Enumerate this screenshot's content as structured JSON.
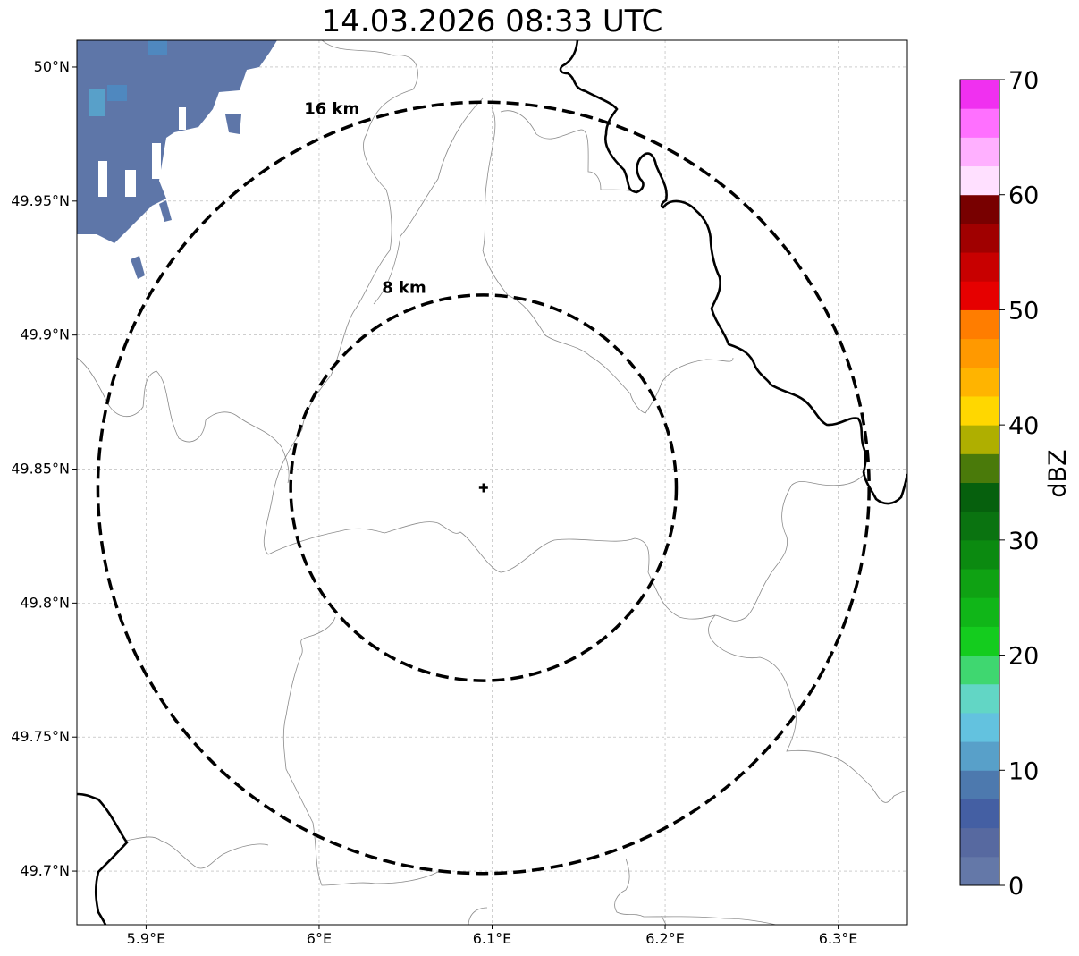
{
  "title": "14.03.2026 08:33 UTC",
  "map": {
    "lon_range": [
      5.86,
      6.34
    ],
    "lat_range": [
      49.68,
      50.01
    ],
    "lon_ticks": [
      {
        "value": 5.9,
        "label": "5.9°E"
      },
      {
        "value": 6.0,
        "label": "6°E"
      },
      {
        "value": 6.1,
        "label": "6.1°E"
      },
      {
        "value": 6.2,
        "label": "6.2°E"
      },
      {
        "value": 6.3,
        "label": "6.3°E"
      }
    ],
    "lat_ticks": [
      {
        "value": 50.0,
        "label": "50°N"
      },
      {
        "value": 49.95,
        "label": "49.95°N"
      },
      {
        "value": 49.9,
        "label": "49.9°N"
      },
      {
        "value": 49.85,
        "label": "49.85°N"
      },
      {
        "value": 49.8,
        "label": "49.8°N"
      },
      {
        "value": 49.75,
        "label": "49.75°N"
      },
      {
        "value": 49.7,
        "label": "49.7°N"
      }
    ],
    "center": {
      "lon": 6.095,
      "lat": 49.843
    },
    "rings": [
      {
        "radius_km": 8,
        "label": "8 km"
      },
      {
        "radius_km": 16,
        "label": "16 km"
      }
    ],
    "grid": true
  },
  "colorbar": {
    "unit": "dBZ",
    "vmin": 0,
    "vmax": 70,
    "step": 2.5,
    "tick_labels": [
      "0",
      "10",
      "20",
      "30",
      "40",
      "50",
      "60",
      "70"
    ],
    "colors": [
      "#6478a8",
      "#5769a0",
      "#445fa3",
      "#4d79ae",
      "#58a0c9",
      "#63c2df",
      "#62d6c5",
      "#3fd770",
      "#14cc1e",
      "#10b618",
      "#0fa213",
      "#0b8a10",
      "#0a7310",
      "#06600d",
      "#4a7a0a",
      "#afaf00",
      "#ffd700",
      "#ffb400",
      "#ff9900",
      "#ff7d00",
      "#e60000",
      "#c80000",
      "#a00000",
      "#780000",
      "#ffe0ff",
      "#ffb0ff",
      "#ff70ff",
      "#f030f0"
    ]
  }
}
